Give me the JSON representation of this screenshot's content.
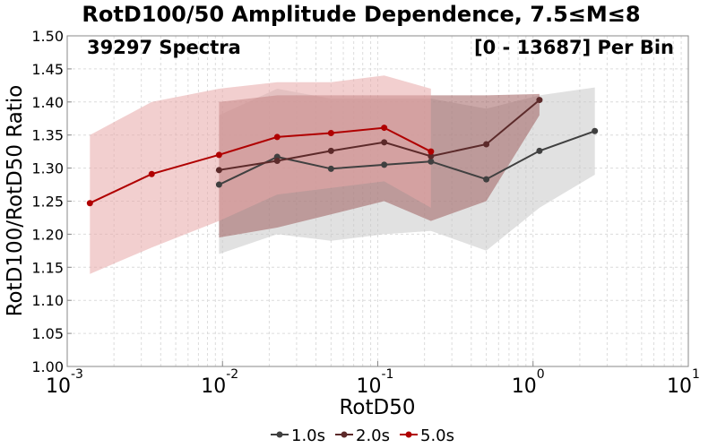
{
  "chart_data": {
    "type": "line",
    "title": "RotD100/50 Amplitude Dependence, 7.5≤M≤8",
    "annotation_left": "39297 Spectra",
    "annotation_right": "[0 - 13687] Per Bin",
    "xlabel": "RotD50",
    "ylabel": "RotD100/RotD50 Ratio",
    "x_scale": "log",
    "xlim": [
      0.001,
      10
    ],
    "ylim": [
      1.0,
      1.5
    ],
    "y_ticks": [
      "1.00",
      "1.05",
      "1.10",
      "1.15",
      "1.20",
      "1.25",
      "1.30",
      "1.35",
      "1.40",
      "1.45",
      "1.50"
    ],
    "x_tick_bases": [
      "10",
      "10",
      "10",
      "10",
      "10"
    ],
    "x_tick_exponents": [
      "-3",
      "-2",
      "-1",
      "0",
      "1"
    ],
    "grid": true,
    "legend_position": "bottom",
    "series": [
      {
        "name": "1.0s",
        "color": "#404040",
        "band_color": "#c8c8c8",
        "x": [
          0.0095,
          0.0225,
          0.05,
          0.11,
          0.22,
          0.5,
          1.1,
          2.5
        ],
        "y": [
          1.275,
          1.317,
          1.299,
          1.305,
          1.31,
          1.283,
          1.326,
          1.356
        ],
        "upper": [
          1.38,
          1.42,
          1.405,
          1.405,
          1.405,
          1.39,
          1.41,
          1.422
        ],
        "lower": [
          1.17,
          1.2,
          1.19,
          1.2,
          1.205,
          1.175,
          1.24,
          1.29
        ]
      },
      {
        "name": "2.0s",
        "color": "#5c2a2a",
        "band_color": "#a06060",
        "x": [
          0.0095,
          0.0225,
          0.05,
          0.11,
          0.22,
          0.5,
          1.1
        ],
        "y": [
          1.297,
          1.311,
          1.326,
          1.339,
          1.318,
          1.336,
          1.403
        ],
        "upper": [
          1.4,
          1.41,
          1.41,
          1.41,
          1.41,
          1.41,
          1.412
        ],
        "lower": [
          1.195,
          1.21,
          1.23,
          1.25,
          1.22,
          1.25,
          1.38
        ]
      },
      {
        "name": "5.0s",
        "color": "#b00000",
        "band_color": "#e8a8a8",
        "x": [
          0.0014,
          0.0035,
          0.0095,
          0.0225,
          0.05,
          0.11,
          0.22
        ],
        "y": [
          1.247,
          1.291,
          1.32,
          1.347,
          1.353,
          1.361,
          1.325
        ],
        "upper": [
          1.35,
          1.4,
          1.42,
          1.43,
          1.43,
          1.44,
          1.42
        ],
        "lower": [
          1.14,
          1.18,
          1.22,
          1.26,
          1.27,
          1.28,
          1.24
        ]
      }
    ]
  }
}
